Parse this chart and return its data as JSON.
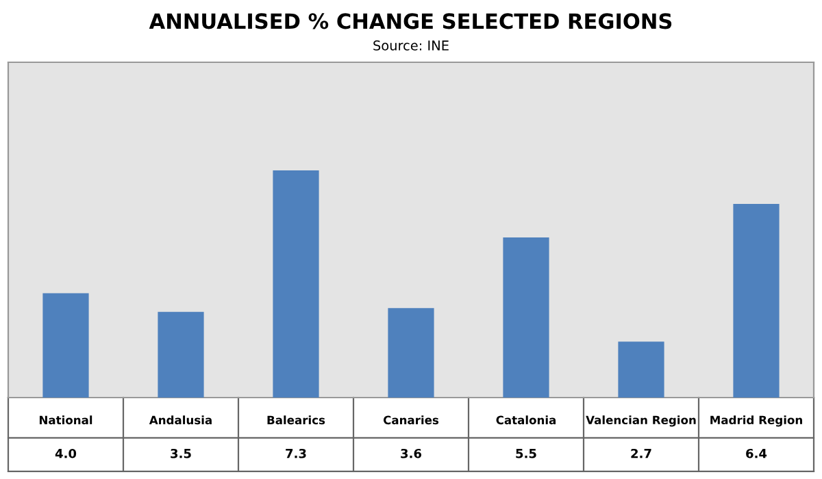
{
  "chart_data": {
    "type": "bar",
    "title": "ANNUALISED % CHANGE SELECTED REGIONS",
    "subtitle": "Source: INE",
    "categories": [
      "National",
      "Andalusia",
      "Balearics",
      "Canaries",
      "Catalonia",
      "Valencian Region",
      "Madrid Region"
    ],
    "values": [
      4.0,
      3.5,
      7.3,
      3.6,
      5.5,
      2.7,
      6.4
    ],
    "color": "#4f81bd",
    "value_labels": [
      "4.0",
      "3.5",
      "7.3",
      "3.6",
      "5.5",
      "2.7",
      "6.4"
    ],
    "ylim": [
      1.2,
      10.2
    ],
    "tick_labels": false
  }
}
